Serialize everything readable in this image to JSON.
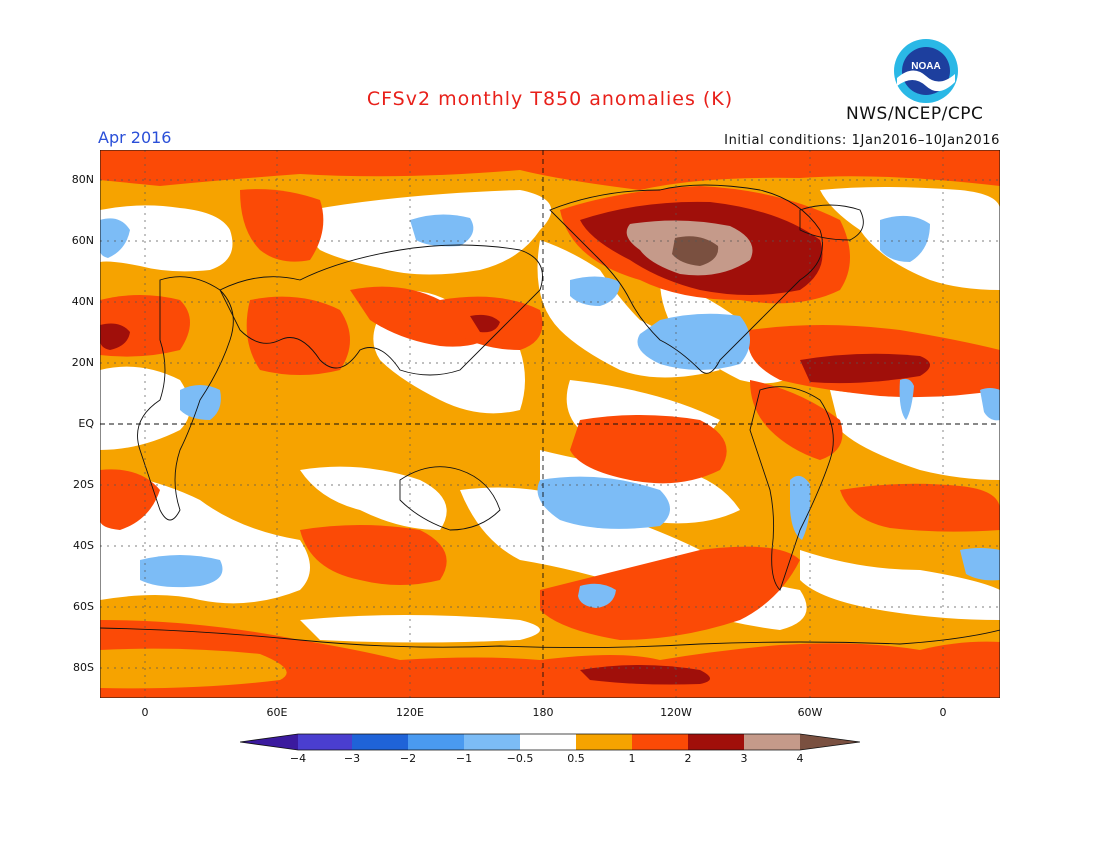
{
  "title": "CFSv2 monthly T850 anomalies (K)",
  "agency": "NWS/NCEP/CPC",
  "logo_text": "NOAA",
  "valid_month": "Apr 2016",
  "initial_conditions": "Initial conditions: 1Jan2016–10Jan2016",
  "map": {
    "lat_labels": [
      "80N",
      "60N",
      "40N",
      "20N",
      "EQ",
      "20S",
      "40S",
      "60S",
      "80S"
    ],
    "lon_labels": [
      "0",
      "60E",
      "120E",
      "180",
      "120W",
      "60W",
      "0"
    ],
    "colors": {
      "neg4": "#3b1a9e",
      "neg3": "#4a3ecf",
      "neg2": "#1f63d8",
      "neg1": "#4a9af0",
      "neg05": "#7cbcf6",
      "neutral": "#ffffff",
      "pos05": "#f6a300",
      "pos1": "#fb4a06",
      "pos2": "#a00f0a",
      "pos3": "#c59a8a",
      "pos4": "#7a5040"
    }
  },
  "colorbar": {
    "labels": [
      "−4",
      "−3",
      "−2",
      "−1",
      "−0.5",
      "0.5",
      "1",
      "2",
      "3",
      "4"
    ]
  }
}
